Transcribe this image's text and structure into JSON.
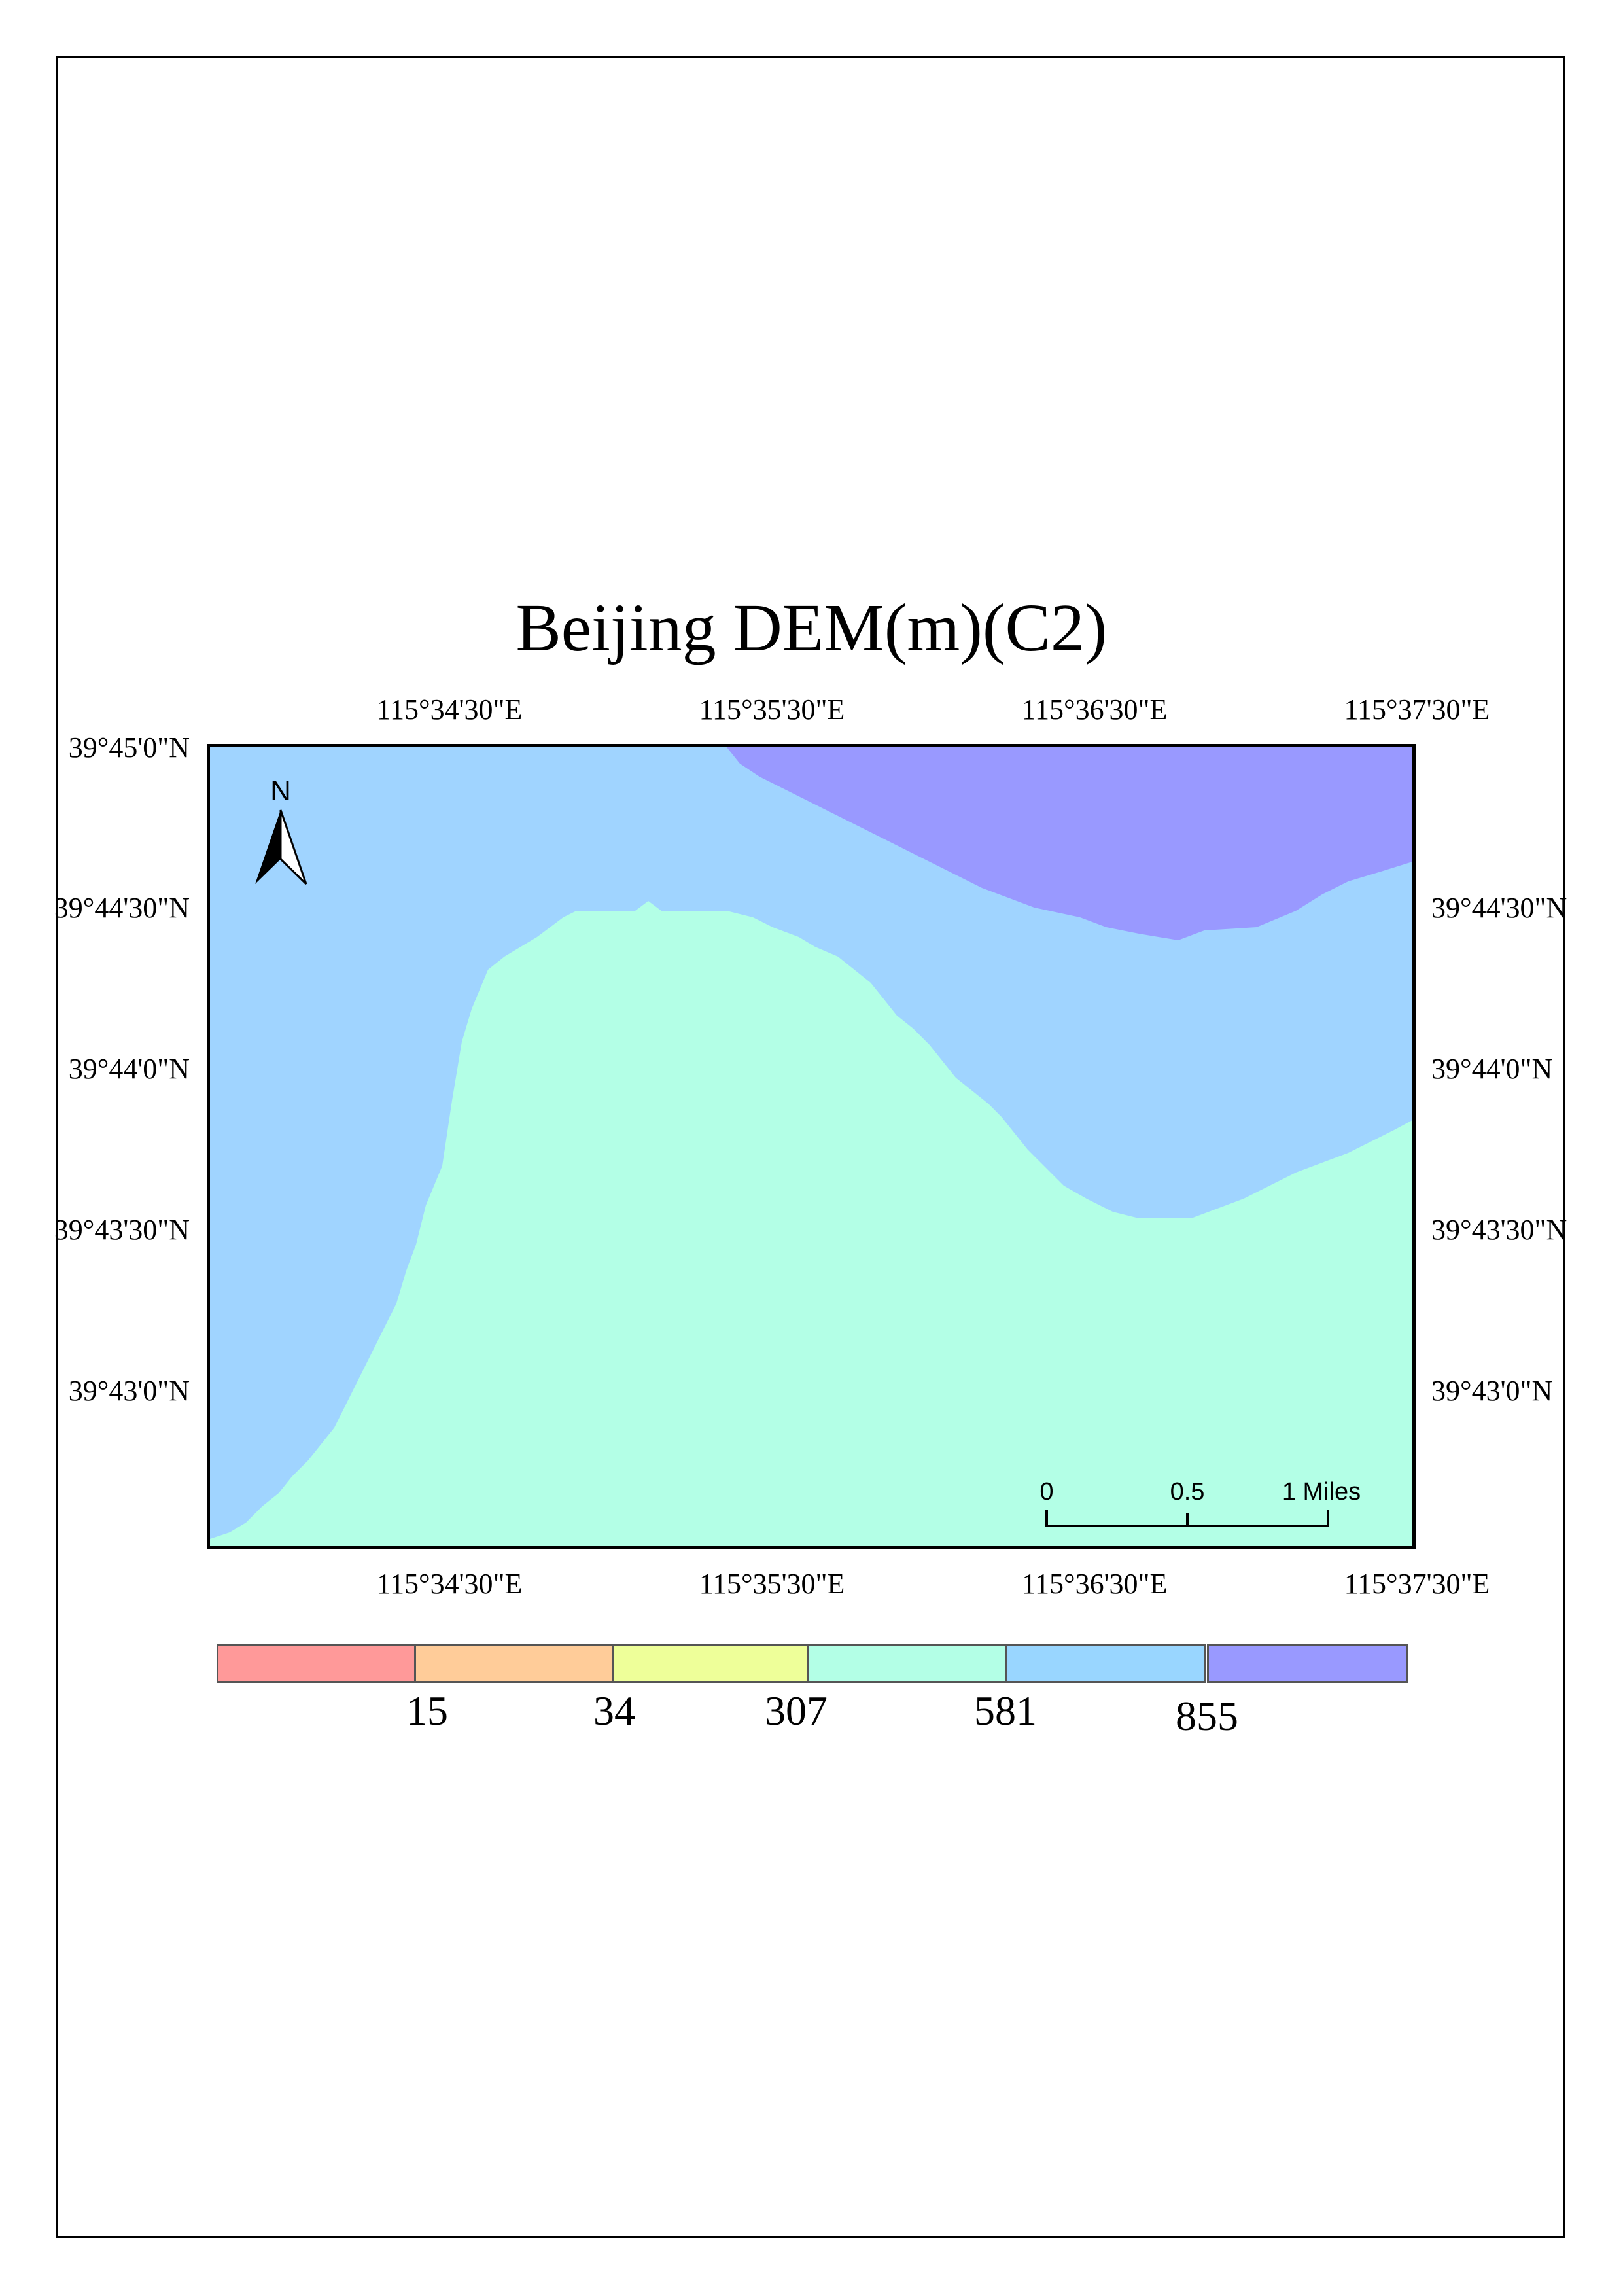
{
  "title": "Beijing DEM(m)(C2)",
  "top_longitudes": [
    "115°34'30\"E",
    "115°35'30\"E",
    "115°36'30\"E",
    "115°37'30\"E"
  ],
  "bottom_longitudes": [
    "115°34'30\"E",
    "115°35'30\"E",
    "115°36'30\"E",
    "115°37'30\"E"
  ],
  "left_latitudes": [
    "39°45'0\"N",
    "39°44'30\"N",
    "39°44'0\"N",
    "39°43'30\"N",
    "39°43'0\"N"
  ],
  "right_latitudes": [
    "39°44'30\"N",
    "39°44'0\"N",
    "39°43'30\"N",
    "39°43'0\"N"
  ],
  "north_arrow": {
    "label": "N"
  },
  "scale_bar": {
    "labels": [
      "0",
      "0.5",
      "1 Miles"
    ]
  },
  "legend": {
    "colors": [
      "#ff9999",
      "#ffcc99",
      "#eeff99",
      "#b3ffe6",
      "#99d6ff",
      "#9999ff"
    ],
    "breaks": [
      "15",
      "34",
      "307",
      "581",
      "855"
    ]
  },
  "map_colors": {
    "low": "#b3ffe6",
    "mid": "#a0d4ff",
    "high": "#9999ff"
  }
}
